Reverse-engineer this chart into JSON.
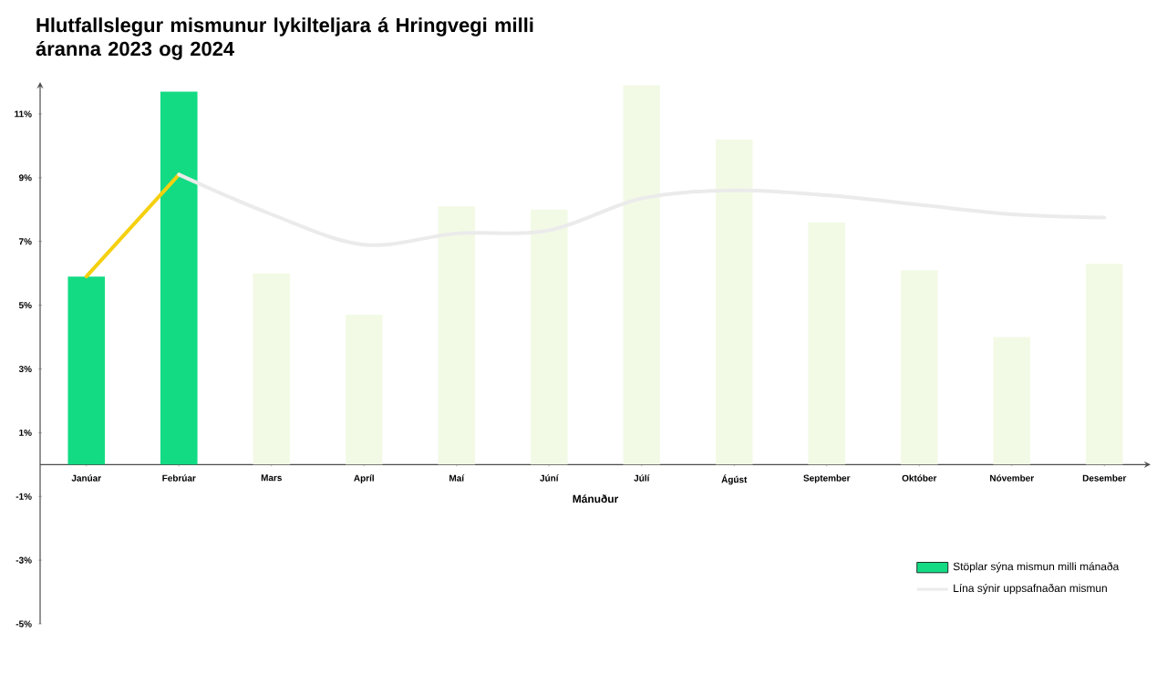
{
  "chart_data": {
    "type": "bar",
    "title": "Hlutfallslegur mismunur lykilteljara á Hringvegi milli áranna 2023 og 2024",
    "xlabel": "Mánuður",
    "categories": [
      "Janúar",
      "Febrúar",
      "Mars",
      "Apríl",
      "Maí",
      "Júní",
      "Júlí",
      "Ágúst",
      "September",
      "Október",
      "Nóvember",
      "Desember"
    ],
    "series": [
      {
        "name": "Stöplar sýna mismun milli mánaða",
        "color": "#13db84",
        "colors": [
          "#13db84",
          "#13db84",
          "#f2fae6",
          "#f2fae6",
          "#f2fae6",
          "#f2fae6",
          "#f2fae6",
          "#f2fae6",
          "#f2fae6",
          "#f2fae6",
          "#f2fae6",
          "#f2fae6"
        ],
        "values": [
          5.9,
          11.7,
          6.0,
          4.7,
          8.1,
          8.0,
          11.9,
          10.2,
          7.6,
          6.1,
          4.0,
          6.3
        ]
      },
      {
        "type": "line",
        "color": "#f5d00f",
        "values": [
          5.9,
          9.1,
          null,
          null,
          null,
          null,
          null,
          null,
          null,
          null,
          null,
          null
        ]
      },
      {
        "type": "line",
        "name": "Lína sýnir uppsafnaðan mismun",
        "color": "#ebebeb",
        "values": [
          null,
          9.1,
          7.85,
          6.9,
          7.25,
          7.35,
          8.35,
          8.6,
          8.45,
          8.15,
          7.85,
          7.75
        ]
      }
    ],
    "ylim": [
      -5,
      12
    ],
    "yticks": [
      {
        "value": -5,
        "label": "-5%"
      },
      {
        "value": -3,
        "label": "-3%"
      },
      {
        "value": -1,
        "label": "-1%"
      },
      {
        "value": 1,
        "label": "1%"
      },
      {
        "value": 3,
        "label": "3%"
      },
      {
        "value": 5,
        "label": "5%"
      },
      {
        "value": 7,
        "label": "7%"
      },
      {
        "value": 9,
        "label": "9%"
      },
      {
        "value": 11,
        "label": "11%"
      }
    ],
    "legend": "bottom right"
  }
}
